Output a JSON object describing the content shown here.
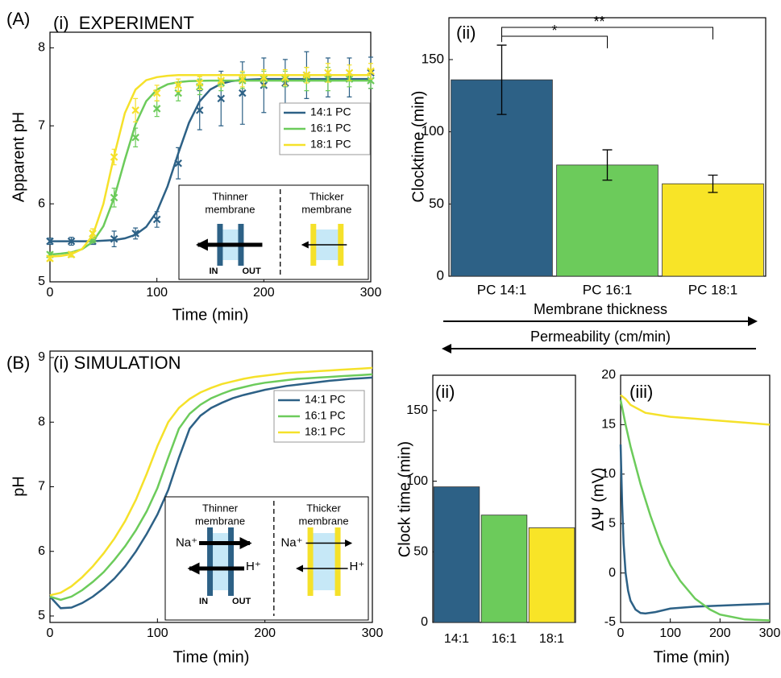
{
  "chart_data": [
    {
      "type": "scatter",
      "panel": "(A)",
      "title": "(i)  EXPERIMENT",
      "xlabel": "Time (min)",
      "ylabel": "Apparent pH",
      "xlim": [
        0,
        300
      ],
      "xticks": [
        0,
        100,
        200,
        300
      ],
      "ylim": [
        5,
        8.2
      ],
      "yticks": [
        5,
        6,
        7,
        8
      ],
      "legend": "upper right",
      "x": [
        0,
        20,
        40,
        60,
        80,
        100,
        120,
        140,
        160,
        180,
        200,
        220,
        240,
        260,
        280,
        300
      ],
      "fit_x": [
        0,
        10,
        20,
        30,
        40,
        50,
        60,
        70,
        80,
        90,
        100,
        110,
        120,
        130,
        140,
        150,
        160,
        170,
        180,
        190,
        200,
        210,
        220,
        230,
        240,
        250,
        260,
        270,
        280,
        290,
        300
      ],
      "series": [
        {
          "name": "14:1 PC",
          "color": "#2d6186",
          "values": [
            5.52,
            5.52,
            5.52,
            5.55,
            5.62,
            5.8,
            6.52,
            7.2,
            7.35,
            7.42,
            7.52,
            7.55,
            7.65,
            7.62,
            7.62,
            7.68
          ],
          "errors": [
            0.04,
            0.05,
            0.04,
            0.1,
            0.07,
            0.1,
            0.2,
            0.25,
            0.35,
            0.4,
            0.35,
            0.3,
            0.3,
            0.25,
            0.25,
            0.2
          ],
          "fit_values": [
            5.52,
            5.52,
            5.52,
            5.52,
            5.52,
            5.527,
            5.536,
            5.557,
            5.604,
            5.704,
            5.9,
            6.225,
            6.647,
            7.04,
            7.313,
            7.466,
            7.539,
            7.573,
            7.588,
            7.595,
            7.6,
            7.6,
            7.6,
            7.6,
            7.6,
            7.6,
            7.6,
            7.6,
            7.6,
            7.6,
            7.6
          ]
        },
        {
          "name": "16:1 PC",
          "color": "#6ccb5b",
          "values": [
            5.35,
            5.35,
            5.55,
            6.08,
            6.85,
            7.22,
            7.42,
            7.5,
            7.55,
            7.58,
            7.6,
            7.6,
            7.6,
            7.6,
            7.6,
            7.58
          ],
          "errors": [
            0.03,
            0.03,
            0.05,
            0.12,
            0.12,
            0.1,
            0.1,
            0.1,
            0.1,
            0.1,
            0.1,
            0.1,
            0.15,
            0.15,
            0.1,
            0.1
          ],
          "fit_values": [
            5.35,
            5.361,
            5.378,
            5.418,
            5.512,
            5.713,
            6.076,
            6.565,
            7.019,
            7.315,
            7.464,
            7.532,
            7.56,
            7.572,
            7.577,
            7.58,
            7.58,
            7.58,
            7.58,
            7.58,
            7.58,
            7.58,
            7.58,
            7.58,
            7.58,
            7.58,
            7.58,
            7.58,
            7.58,
            7.58,
            7.58
          ]
        },
        {
          "name": "18:1 PC",
          "color": "#f5e12a",
          "values": [
            5.3,
            5.35,
            5.62,
            6.6,
            7.2,
            7.42,
            7.52,
            7.55,
            7.58,
            7.6,
            7.62,
            7.62,
            7.65,
            7.68,
            7.68,
            7.7
          ],
          "errors": [
            0.03,
            0.03,
            0.06,
            0.1,
            0.15,
            0.1,
            0.08,
            0.08,
            0.08,
            0.1,
            0.1,
            0.1,
            0.1,
            0.12,
            0.1,
            0.1
          ],
          "fit_values": [
            5.324,
            5.331,
            5.354,
            5.42,
            5.598,
            5.999,
            6.614,
            7.163,
            7.464,
            7.585,
            7.624,
            7.642,
            7.65,
            7.65,
            7.65,
            7.65,
            7.65,
            7.65,
            7.65,
            7.65,
            7.65,
            7.65,
            7.65,
            7.65,
            7.65,
            7.65,
            7.65,
            7.65,
            7.65,
            7.65,
            7.65
          ]
        }
      ],
      "inset": {
        "left_title": [
          "Thinner",
          "membrane"
        ],
        "right_title": [
          "Thicker",
          "membrane"
        ],
        "in": "IN",
        "out": "OUT"
      }
    },
    {
      "type": "bar",
      "title": "(ii)",
      "ylabel": "Clocktime (min)",
      "categories": [
        "PC 14:1",
        "PC 16:1",
        "PC 18:1"
      ],
      "values": [
        136,
        77,
        64
      ],
      "errors": [
        24,
        10.5,
        6
      ],
      "colors": [
        "#2d6186",
        "#6ccb5b",
        "#f8e427"
      ],
      "ylim": [
        0,
        179
      ],
      "yticks": [
        0,
        50,
        100,
        150
      ],
      "significance": [
        {
          "pair": [
            "PC 14:1",
            "PC 16:1"
          ],
          "label": "*"
        },
        {
          "pair": [
            "PC 14:1",
            "PC 18:1"
          ],
          "label": "**"
        }
      ],
      "arrows": [
        {
          "label": "Membrane thickness",
          "direction": "right"
        },
        {
          "label": "Permeability (cm/min)",
          "direction": "left"
        }
      ]
    },
    {
      "type": "line",
      "panel": "(B)",
      "title": "(i) SIMULATION",
      "xlabel": "Time (min)",
      "ylabel": "pH",
      "xlim": [
        0,
        300
      ],
      "xticks": [
        0,
        100,
        200,
        300
      ],
      "ylim": [
        4.9,
        9.1
      ],
      "yticks": [
        5,
        6,
        7,
        8,
        9
      ],
      "legend": "upper right",
      "x": [
        0,
        10,
        20,
        30,
        40,
        50,
        60,
        70,
        80,
        90,
        100,
        110,
        120,
        130,
        140,
        150,
        160,
        170,
        180,
        190,
        200,
        210,
        220,
        230,
        240,
        250,
        260,
        270,
        280,
        290,
        300
      ],
      "series": [
        {
          "name": "14:1 PC",
          "color": "#2d6186",
          "values": [
            5.3,
            5.12,
            5.13,
            5.2,
            5.3,
            5.43,
            5.58,
            5.77,
            6.0,
            6.27,
            6.57,
            6.95,
            7.45,
            7.9,
            8.1,
            8.22,
            8.3,
            8.37,
            8.42,
            8.46,
            8.5,
            8.53,
            8.56,
            8.58,
            8.6,
            8.62,
            8.64,
            8.655,
            8.67,
            8.68,
            8.69
          ]
        },
        {
          "name": "16:1 PC",
          "color": "#6ccb5b",
          "values": [
            5.3,
            5.25,
            5.3,
            5.4,
            5.53,
            5.68,
            5.87,
            6.08,
            6.33,
            6.62,
            6.98,
            7.45,
            7.9,
            8.13,
            8.27,
            8.37,
            8.44,
            8.5,
            8.54,
            8.58,
            8.61,
            8.63,
            8.65,
            8.67,
            8.68,
            8.69,
            8.7,
            8.71,
            8.72,
            8.73,
            8.74
          ]
        },
        {
          "name": "18:1 PC",
          "color": "#f5e12a",
          "values": [
            5.32,
            5.36,
            5.46,
            5.6,
            5.77,
            5.97,
            6.2,
            6.47,
            6.8,
            7.2,
            7.63,
            8.0,
            8.22,
            8.36,
            8.46,
            8.53,
            8.59,
            8.63,
            8.67,
            8.7,
            8.72,
            8.74,
            8.76,
            8.77,
            8.78,
            8.79,
            8.8,
            8.81,
            8.82,
            8.83,
            8.84
          ]
        }
      ],
      "inset": {
        "left_title": [
          "Thinner",
          "membrane"
        ],
        "right_title": [
          "Thicker",
          "membrane"
        ],
        "in": "IN",
        "out": "OUT",
        "na": "Na⁺",
        "h": "H⁺"
      }
    },
    {
      "type": "bar",
      "title": "(ii)",
      "ylabel": "Clock time (min)",
      "categories": [
        "14:1",
        "16:1",
        "18:1"
      ],
      "values": [
        96,
        76,
        67
      ],
      "colors": [
        "#2d6186",
        "#6ccb5b",
        "#f8e427"
      ],
      "ylim": [
        0,
        175
      ],
      "yticks": [
        0,
        50,
        100,
        150
      ]
    },
    {
      "type": "line",
      "title": "(iii)",
      "xlabel": "Time (min)",
      "ylabel": "ΔΨ (mV)",
      "xlim": [
        0,
        300
      ],
      "xticks": [
        0,
        100,
        200,
        300
      ],
      "ylim": [
        -5,
        20
      ],
      "yticks": [
        -5,
        0,
        5,
        10,
        15,
        20
      ],
      "series": [
        {
          "color": "#2d6186",
          "x": [
            0,
            3,
            6,
            10,
            15,
            20,
            30,
            40,
            50,
            70,
            100,
            150,
            200,
            250,
            300
          ],
          "values": [
            13,
            7,
            3,
            0,
            -1.8,
            -2.8,
            -3.7,
            -4.05,
            -4.1,
            -3.95,
            -3.6,
            -3.4,
            -3.3,
            -3.2,
            -3.1
          ]
        },
        {
          "color": "#6ccb5b",
          "x": [
            0,
            10,
            20,
            40,
            60,
            80,
            100,
            120,
            150,
            180,
            200,
            250,
            300
          ],
          "values": [
            17.5,
            15,
            12.8,
            9,
            5.8,
            3,
            0.8,
            -0.8,
            -2.6,
            -3.7,
            -4.2,
            -4.7,
            -4.8
          ]
        },
        {
          "color": "#f5e12a",
          "x": [
            0,
            10,
            20,
            50,
            100,
            150,
            200,
            250,
            300
          ],
          "values": [
            18,
            17.6,
            17,
            16.2,
            15.8,
            15.6,
            15.4,
            15.2,
            15.0
          ]
        }
      ]
    }
  ]
}
